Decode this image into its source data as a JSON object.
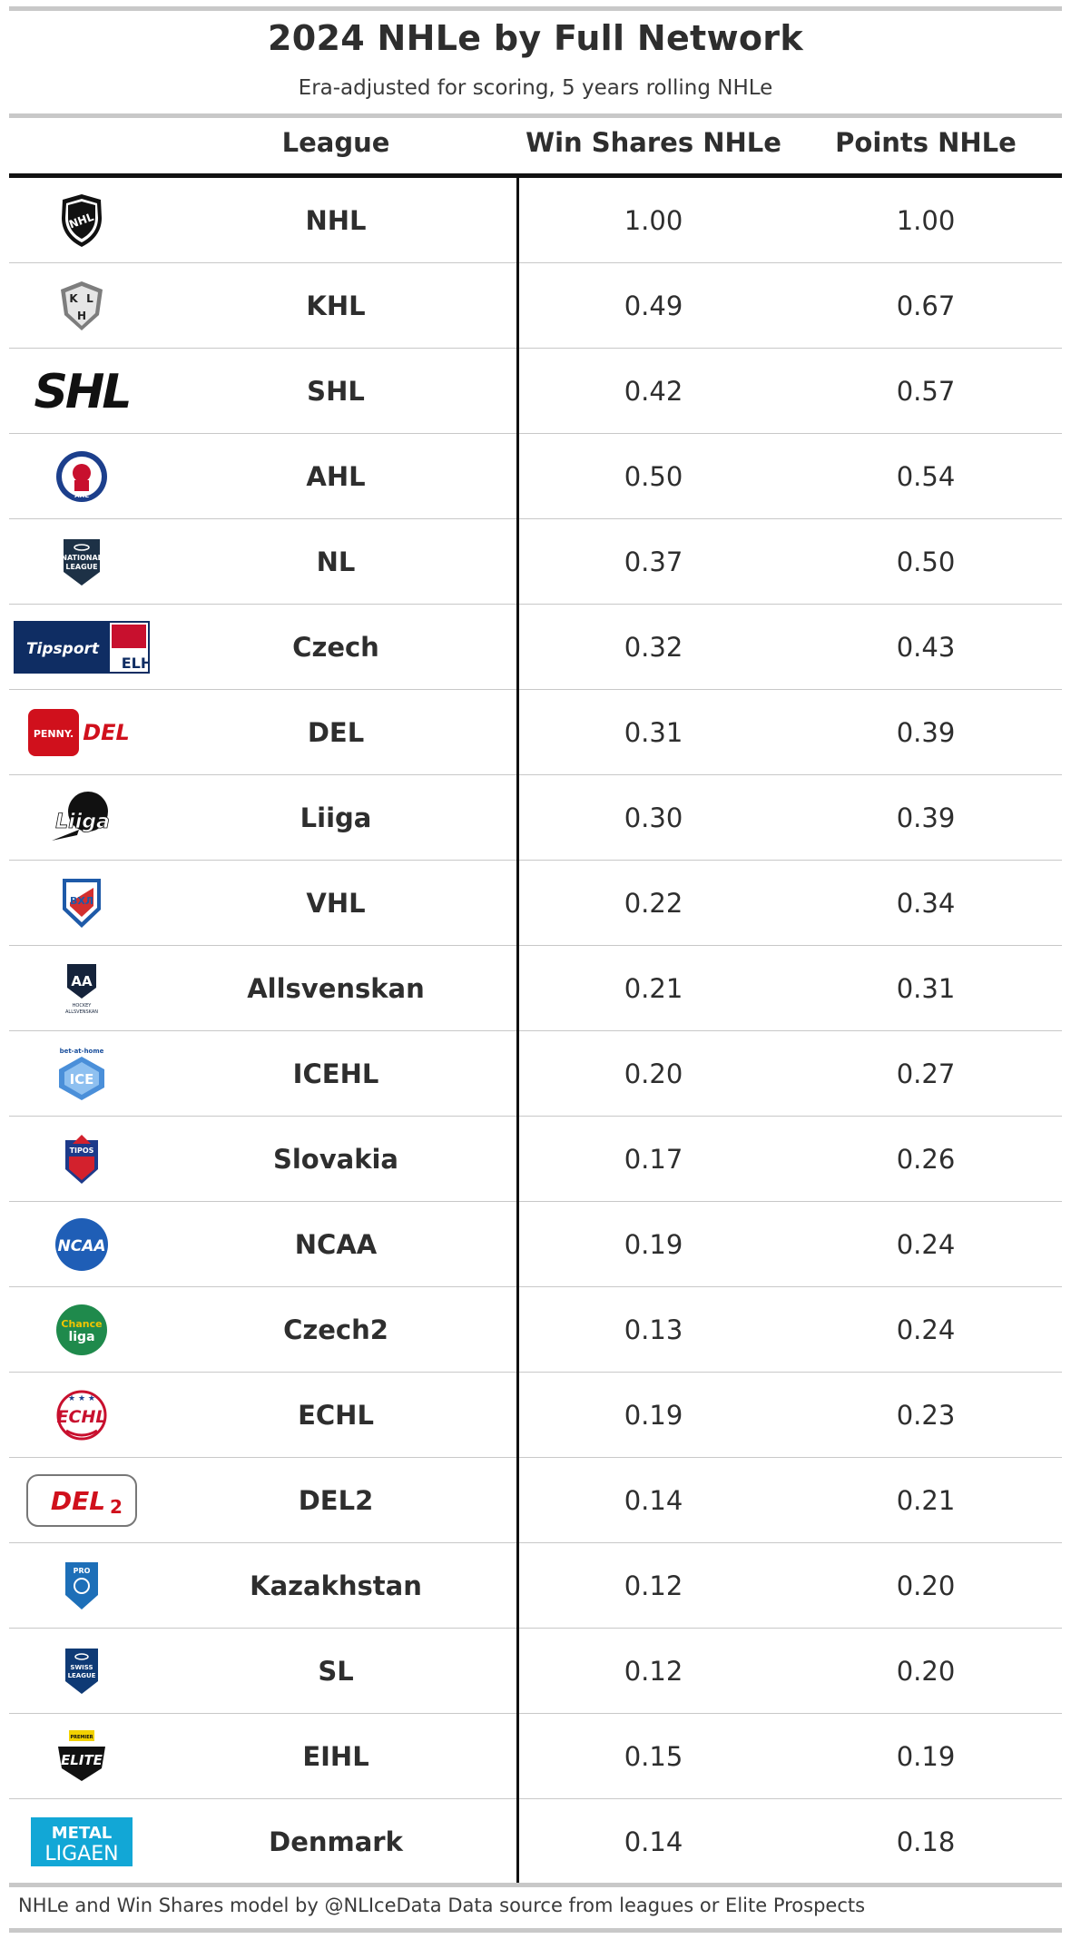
{
  "chart_data": {
    "type": "table",
    "title": "2024 NHLe by Full Network",
    "subtitle": "Era-adjusted for scoring, 5 years rolling NHLe",
    "columns": [
      "League",
      "Win Shares NHLe",
      "Points NHLe"
    ],
    "rows": [
      {
        "league": "NHL",
        "win_shares": "1.00",
        "points": "1.00",
        "logo_icon": "nhl-logo-icon"
      },
      {
        "league": "KHL",
        "win_shares": "0.49",
        "points": "0.67",
        "logo_icon": "khl-logo-icon"
      },
      {
        "league": "SHL",
        "win_shares": "0.42",
        "points": "0.57",
        "logo_icon": "shl-logo-icon"
      },
      {
        "league": "AHL",
        "win_shares": "0.50",
        "points": "0.54",
        "logo_icon": "ahl-logo-icon"
      },
      {
        "league": "NL",
        "win_shares": "0.37",
        "points": "0.50",
        "logo_icon": "national-league-logo-icon"
      },
      {
        "league": "Czech",
        "win_shares": "0.32",
        "points": "0.43",
        "logo_icon": "tipsport-elh-logo-icon"
      },
      {
        "league": "DEL",
        "win_shares": "0.31",
        "points": "0.39",
        "logo_icon": "penny-del-logo-icon"
      },
      {
        "league": "Liiga",
        "win_shares": "0.30",
        "points": "0.39",
        "logo_icon": "liiga-logo-icon"
      },
      {
        "league": "VHL",
        "win_shares": "0.22",
        "points": "0.34",
        "logo_icon": "vhl-logo-icon"
      },
      {
        "league": "Allsvenskan",
        "win_shares": "0.21",
        "points": "0.31",
        "logo_icon": "allsvenskan-logo-icon"
      },
      {
        "league": "ICEHL",
        "win_shares": "0.20",
        "points": "0.27",
        "logo_icon": "icehl-logo-icon"
      },
      {
        "league": "Slovakia",
        "win_shares": "0.17",
        "points": "0.26",
        "logo_icon": "tipos-extraliga-logo-icon"
      },
      {
        "league": "NCAA",
        "win_shares": "0.19",
        "points": "0.24",
        "logo_icon": "ncaa-logo-icon"
      },
      {
        "league": "Czech2",
        "win_shares": "0.13",
        "points": "0.24",
        "logo_icon": "chance-liga-logo-icon"
      },
      {
        "league": "ECHL",
        "win_shares": "0.19",
        "points": "0.23",
        "logo_icon": "echl-logo-icon"
      },
      {
        "league": "DEL2",
        "win_shares": "0.14",
        "points": "0.21",
        "logo_icon": "del2-logo-icon"
      },
      {
        "league": "Kazakhstan",
        "win_shares": "0.12",
        "points": "0.20",
        "logo_icon": "pro-hockey-league-logo-icon"
      },
      {
        "league": "SL",
        "win_shares": "0.12",
        "points": "0.20",
        "logo_icon": "swiss-league-logo-icon"
      },
      {
        "league": "EIHL",
        "win_shares": "0.15",
        "points": "0.19",
        "logo_icon": "elite-league-logo-icon"
      },
      {
        "league": "Denmark",
        "win_shares": "0.14",
        "points": "0.18",
        "logo_icon": "metal-ligaen-logo-icon"
      }
    ],
    "footer": "NHLe and Win Shares model by @NLIceData Data source from leagues or Elite Prospects",
    "colors": {
      "text": "#2e2e2e",
      "rule": "#c8c8c8",
      "header_rule": "#111111"
    }
  }
}
